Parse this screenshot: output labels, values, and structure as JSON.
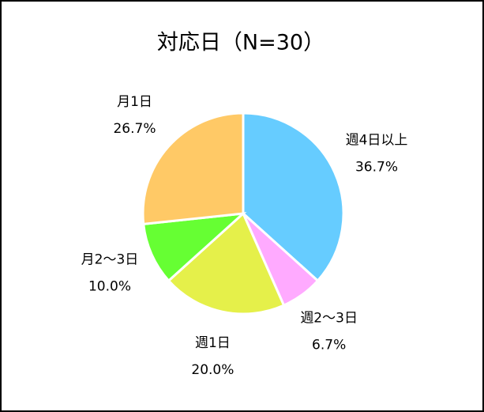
{
  "chart_data": {
    "type": "pie",
    "title": "対応日（N=30）",
    "categories": [
      "週4日以上",
      "週2〜3日",
      "週1日",
      "月2〜3日",
      "月1日"
    ],
    "values": [
      36.7,
      6.7,
      20.0,
      10.0,
      26.7
    ],
    "value_labels": [
      "36.7%",
      "6.7%",
      "20.0%",
      "10.0%",
      "26.7%"
    ],
    "colors": [
      "#66ccff",
      "#ffaaff",
      "#e5f04a",
      "#66ff33",
      "#ffc966"
    ]
  }
}
